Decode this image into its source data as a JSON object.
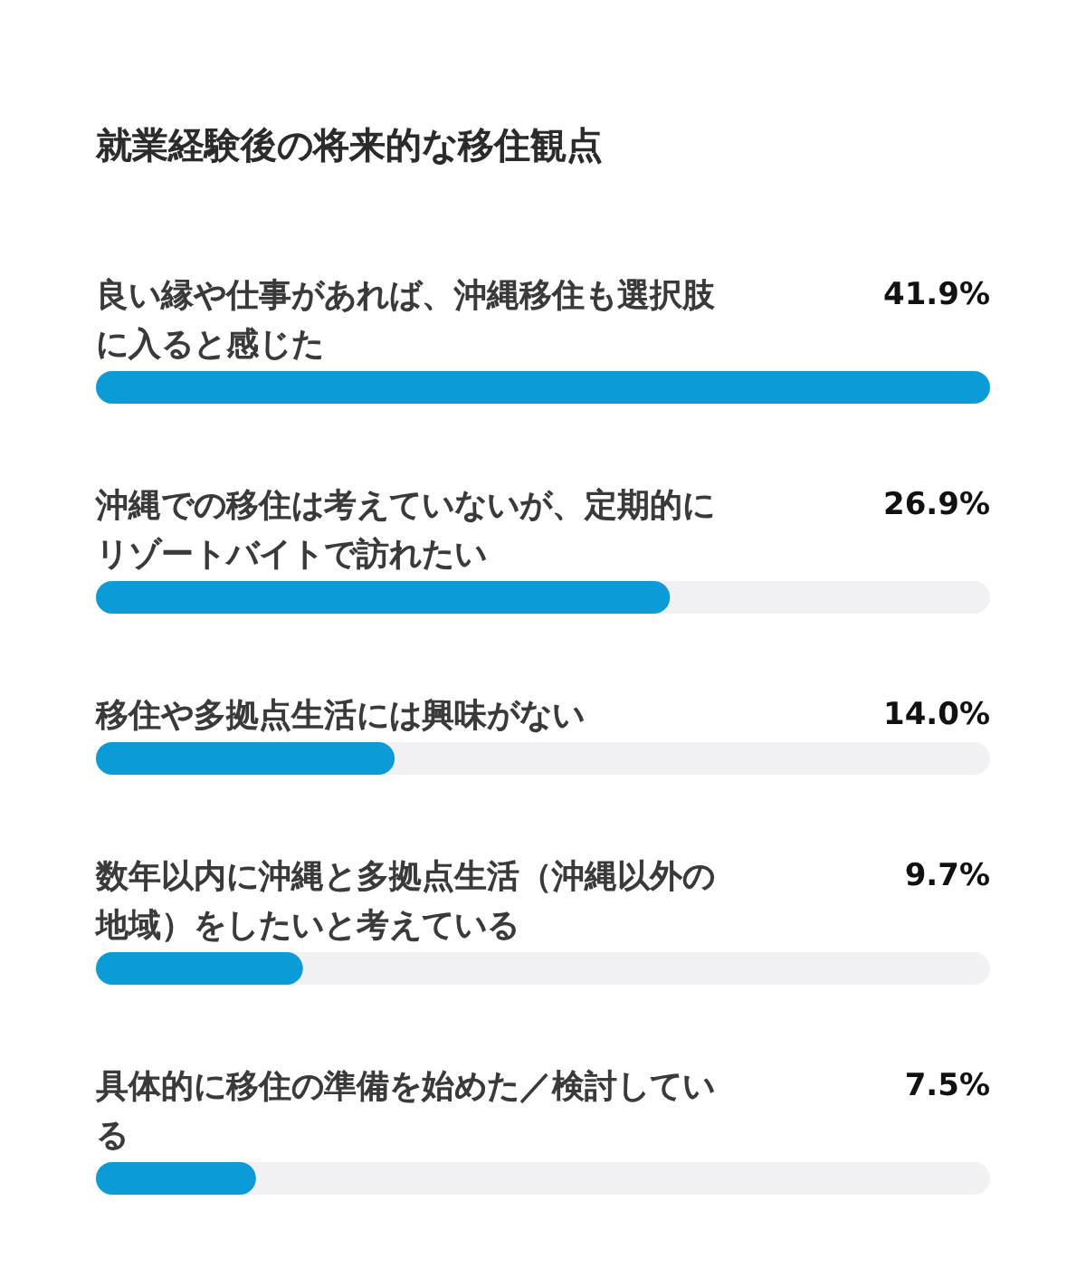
{
  "chart_data": {
    "type": "bar",
    "orientation": "horizontal",
    "title": "就業経験後の将来的な移住観点",
    "categories": [
      "良い縁や仕事があれば、沖縄移住も選択肢に入ると感じた",
      "沖縄での移住は考えていないが、定期的にリゾートバイトで訪れたい",
      "移住や多拠点生活には興味がない",
      "数年以内に沖縄と多拠点生活（沖縄以外の地域）をしたいと考えている",
      "具体的に移住の準備を始めた／検討している"
    ],
    "values": [
      41.9,
      26.9,
      14.0,
      9.7,
      7.5
    ],
    "color": "#0b9bd7",
    "xlim": [
      0,
      41.9
    ],
    "value_labels": [
      "41.9%",
      "26.9%",
      "14.0%",
      "9.7%",
      "7.5%"
    ]
  }
}
